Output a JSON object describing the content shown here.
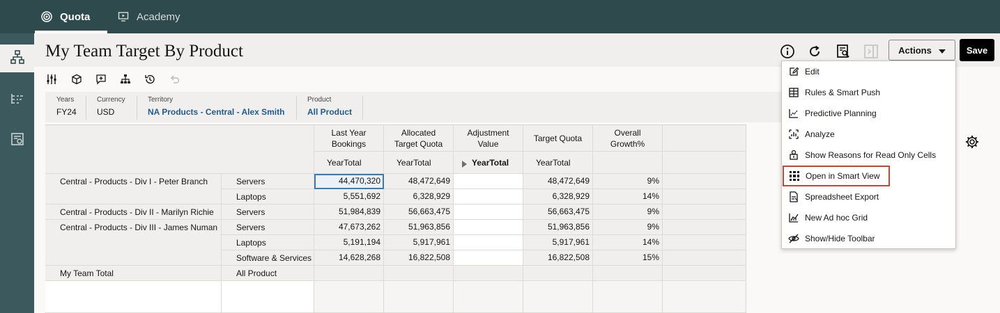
{
  "nav": {
    "tabs": [
      {
        "label": "Quota"
      },
      {
        "label": "Academy"
      }
    ]
  },
  "header": {
    "title": "My Team Target By Product",
    "actions_label": "Actions",
    "save_label": "Save",
    "icons": [
      "info-icon",
      "refresh-icon",
      "search-document-icon",
      "panel-toggle-icon"
    ]
  },
  "toolbar": {
    "icons": [
      "sliders-icon",
      "cube-icon",
      "comment-icon",
      "hierarchy-icon",
      "history-icon",
      "undo-icon"
    ]
  },
  "pov": [
    {
      "label": "Years",
      "value": "FY24"
    },
    {
      "label": "Currency",
      "value": "USD"
    },
    {
      "label": "Territory",
      "value": "NA Products - Central - Alex Smith"
    },
    {
      "label": "Product",
      "value": "All Product"
    }
  ],
  "grid": {
    "columns": [
      {
        "header": [
          "Last Year",
          "Bookings"
        ],
        "sub": "YearTotal"
      },
      {
        "header": [
          "Allocated",
          "Target Quota"
        ],
        "sub": "YearTotal"
      },
      {
        "header": [
          "Adjustment",
          "Value"
        ],
        "sub": "YearTotal"
      },
      {
        "header": [
          "Target Quota",
          ""
        ],
        "sub": "YearTotal"
      },
      {
        "header": [
          "Overall",
          "Growth%"
        ],
        "sub": ""
      }
    ],
    "rows": [
      {
        "territory": "Central - Products - Div I - Peter Branch",
        "product": "Servers",
        "values": [
          "44,470,320",
          "48,472,649",
          "",
          "48,472,649",
          "9%"
        ]
      },
      {
        "territory": "",
        "product": "Laptops",
        "values": [
          "5,551,692",
          "6,328,929",
          "",
          "6,328,929",
          "14%"
        ]
      },
      {
        "territory": "Central - Products - Div II - Marilyn Richie",
        "product": "Servers",
        "values": [
          "51,984,839",
          "56,663,475",
          "",
          "56,663,475",
          "9%"
        ]
      },
      {
        "territory": "Central - Products - Div III - James Numan",
        "product": "Servers",
        "values": [
          "47,673,262",
          "51,963,856",
          "",
          "51,963,856",
          "9%"
        ]
      },
      {
        "territory": "",
        "product": "Laptops",
        "values": [
          "5,191,194",
          "5,917,961",
          "",
          "5,917,961",
          "14%"
        ]
      },
      {
        "territory": "",
        "product": "Software & Services",
        "values": [
          "14,628,268",
          "16,822,508",
          "",
          "16,822,508",
          "15%"
        ]
      },
      {
        "territory": "My Team Total",
        "product": "All Product",
        "values": [
          "",
          "",
          "",
          "",
          ""
        ]
      }
    ]
  },
  "menu": {
    "items": [
      {
        "label": "Edit",
        "icon": "edit-icon"
      },
      {
        "label": "Rules & Smart Push",
        "icon": "rules-icon"
      },
      {
        "label": "Predictive Planning",
        "icon": "predictive-icon"
      },
      {
        "label": "Analyze",
        "icon": "analyze-icon"
      },
      {
        "label": "Show Reasons for Read Only Cells",
        "icon": "reasons-icon"
      },
      {
        "label": "Open in Smart View",
        "icon": "smart-view-icon"
      },
      {
        "label": "Spreadsheet Export",
        "icon": "spreadsheet-export-icon"
      },
      {
        "label": "New Ad hoc Grid",
        "icon": "adhoc-grid-icon"
      },
      {
        "label": "Show/Hide Toolbar",
        "icon": "hide-toolbar-icon"
      }
    ],
    "highlighted": "Open in Smart View",
    "highlight_color": "#c74634"
  }
}
